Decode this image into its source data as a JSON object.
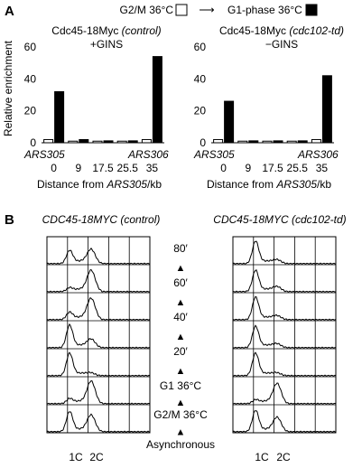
{
  "panel_a": {
    "letter": "A",
    "legend": {
      "hollow_label": "G2/M 36°C",
      "arrow": "⟶",
      "filled_label": "G1-phase 36°C",
      "placement": "top-center"
    },
    "ylabel": "Relative enrichment",
    "xlabel_prefix": "Distance from ",
    "xlabel_locus": "ARS305",
    "xlabel_suffix": "/kb",
    "ticks": [
      "0",
      "9",
      "17.5",
      "25.5",
      "35"
    ],
    "yticks": [
      "0",
      "20",
      "40",
      "60"
    ],
    "left_locus_label": "ARS305",
    "right_locus_label": "ARS306"
  },
  "panel_b": {
    "letter": "B",
    "left_title_gene": "CDC45-18MYC",
    "left_title_strain": "(control)",
    "right_title": "CDC45-18MYC (cdc102-td)",
    "timeline": [
      "80′",
      "60′",
      "40′",
      "20′",
      "G1 36°C",
      "G2/M 36°C",
      "Asynchronous"
    ],
    "arrow": "▲",
    "left_axis": {
      "c1": "1C",
      "c2": "2C"
    },
    "right_axis": {
      "c1": "1C",
      "c2": "2C"
    }
  },
  "chart_data": [
    {
      "type": "bar",
      "title": "Cdc45-18Myc (control) +GINS",
      "title_plain": "Cdc45-18Myc",
      "title_italic": "(control)",
      "subtitle": "+GINS",
      "categories": [
        "0",
        "9",
        "17.5",
        "25.5",
        "35"
      ],
      "xlabel": "Distance from ARS305/kb",
      "ylabel": "Relative enrichment",
      "ylim": [
        0,
        60
      ],
      "series": [
        {
          "name": "G2/M 36°C",
          "values": [
            2,
            1,
            1,
            1,
            2
          ],
          "color": "#ffffff"
        },
        {
          "name": "G1-phase 36°C",
          "values": [
            32,
            2,
            1.2,
            1.2,
            54
          ],
          "color": "#000000"
        }
      ]
    },
    {
      "type": "bar",
      "title": "Cdc45-18Myc (cdc102-td) −GINS",
      "title_plain": "Cdc45-18Myc",
      "title_italic": "(cdc102-td)",
      "subtitle": "−GINS",
      "categories": [
        "0",
        "9",
        "17.5",
        "25.5",
        "35"
      ],
      "xlabel": "Distance from ARS305/kb",
      "ylabel": "Relative enrichment",
      "ylim": [
        0,
        60
      ],
      "series": [
        {
          "name": "G2/M 36°C",
          "values": [
            2,
            1,
            1,
            1,
            2
          ],
          "color": "#ffffff"
        },
        {
          "name": "G1-phase 36°C",
          "values": [
            26,
            1.2,
            1.2,
            1.2,
            42
          ],
          "color": "#000000"
        }
      ]
    }
  ]
}
